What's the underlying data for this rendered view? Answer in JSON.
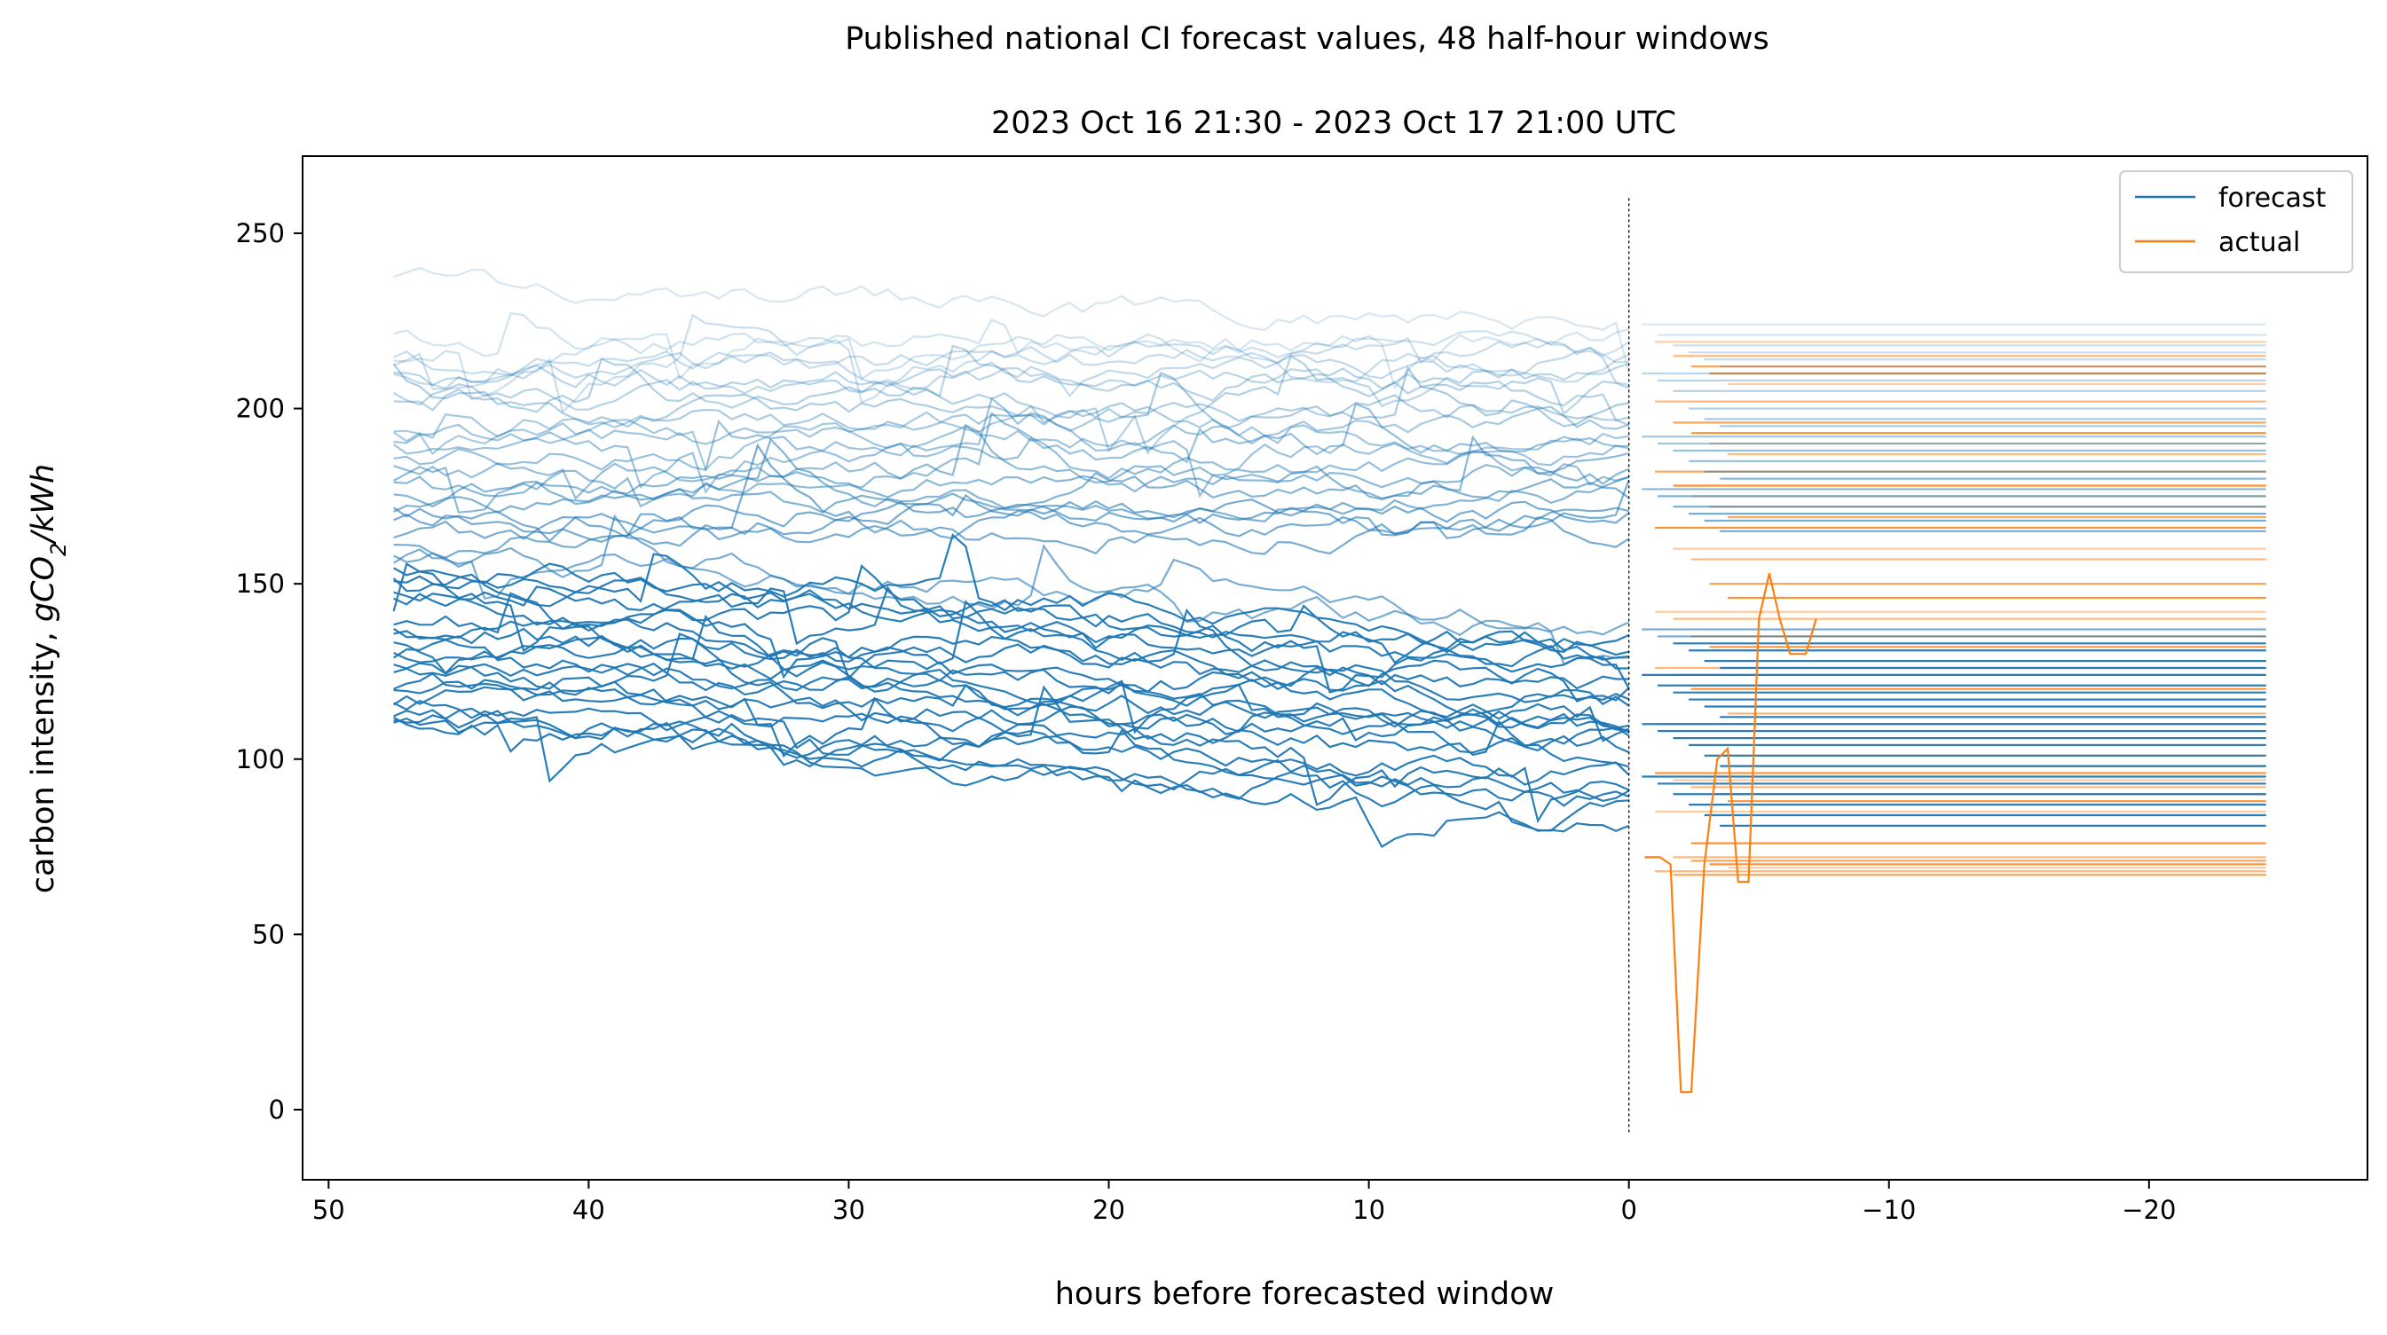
{
  "chart_data": {
    "type": "line",
    "suptitle": "Published national CI forecast values, 48 half-hour windows",
    "title": "2023 Oct 16 21:30 - 2023 Oct 17 21:00 UTC",
    "xlabel": "hours before forecasted window",
    "ylabel_prefix": "carbon intensity, ",
    "ylabel_math_g": "gCO",
    "ylabel_math_sub": "2",
    "ylabel_math_rest": "/kWh",
    "xlim": [
      51,
      -28.4
    ],
    "ylim": [
      -20,
      272
    ],
    "xticks": [
      50,
      40,
      30,
      20,
      10,
      0,
      -10,
      -20
    ],
    "xtick_labels": [
      "50",
      "40",
      "30",
      "20",
      "10",
      "0",
      "−10",
      "−20"
    ],
    "yticks": [
      0,
      50,
      100,
      150,
      200,
      250
    ],
    "ytick_labels": [
      "0",
      "50",
      "100",
      "150",
      "200",
      "250"
    ],
    "vline_x": 0,
    "vline_yrange": [
      -7,
      260
    ],
    "forecast_x_start": 47.5,
    "actual_x_end": -24.5,
    "legend": [
      {
        "label": "forecast",
        "color": "#1f77b4"
      },
      {
        "label": "actual",
        "color": "#ff7f0e"
      }
    ],
    "colors": {
      "forecast": "#1f77b4",
      "actual": "#ff7f0e"
    },
    "windows_count": 48,
    "forecast_start_values": [
      236,
      219,
      216,
      214,
      213,
      211,
      208,
      205,
      202,
      199,
      196,
      193,
      191,
      188,
      185,
      182,
      180,
      177,
      175,
      173,
      170,
      168,
      165,
      162,
      160,
      158,
      156,
      152,
      150,
      147,
      145,
      142,
      140,
      137,
      135,
      133,
      131,
      129,
      127,
      125,
      122,
      120,
      117,
      115,
      113,
      111,
      110,
      108
    ],
    "forecast_end_values": [
      224,
      221,
      218,
      216,
      214,
      212,
      210,
      208,
      205,
      200,
      197,
      195,
      192,
      190,
      188,
      185,
      182,
      180,
      177,
      175,
      172,
      170,
      168,
      165,
      137,
      135,
      133,
      131,
      128,
      126,
      124,
      121,
      119,
      117,
      115,
      112,
      110,
      108,
      106,
      104,
      101,
      98,
      95,
      93,
      90,
      87,
      84,
      81
    ],
    "actual_values": [
      219,
      215,
      212,
      210,
      207,
      202,
      196,
      193,
      190,
      187,
      182,
      178,
      175,
      172,
      169,
      166,
      160,
      157,
      150,
      146,
      142,
      140,
      135,
      132,
      128,
      126,
      124,
      120,
      117,
      113,
      110,
      106,
      104,
      101,
      98,
      96,
      94,
      92,
      90,
      88,
      85,
      72,
      71,
      70,
      69,
      68,
      67,
      76
    ]
  }
}
